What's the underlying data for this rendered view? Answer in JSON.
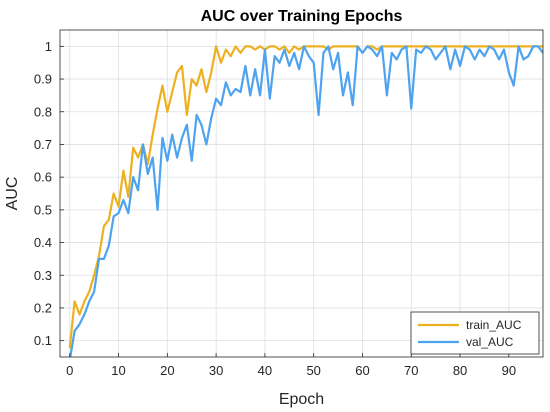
{
  "chart_data": {
    "type": "line",
    "title": "AUC over Training Epochs",
    "xlabel": "Epoch",
    "ylabel": "AUC",
    "xlim": [
      -2,
      97
    ],
    "ylim": [
      0.05,
      1.05
    ],
    "xticks": [
      0,
      10,
      20,
      30,
      40,
      50,
      60,
      70,
      80,
      90
    ],
    "yticks": [
      0.1,
      0.2,
      0.3,
      0.4,
      0.5,
      0.6,
      0.7,
      0.8,
      0.9,
      1
    ],
    "grid": true,
    "legend_position": "bottom-right",
    "series": [
      {
        "name": "train_AUC",
        "color": "#EDB120",
        "values": [
          0.08,
          0.22,
          0.18,
          0.22,
          0.25,
          0.3,
          0.36,
          0.45,
          0.47,
          0.55,
          0.51,
          0.62,
          0.54,
          0.69,
          0.66,
          0.7,
          0.64,
          0.73,
          0.81,
          0.88,
          0.8,
          0.86,
          0.92,
          0.94,
          0.79,
          0.9,
          0.88,
          0.93,
          0.86,
          0.92,
          1.0,
          0.95,
          0.99,
          0.97,
          1.0,
          0.98,
          1.0,
          1.0,
          0.99,
          1.0,
          0.99,
          1.0,
          1.0,
          0.99,
          1.0,
          0.98,
          1.0,
          0.99,
          1.0,
          1.0,
          1.0,
          1.0,
          1.0,
          0.99,
          1.0,
          1.0,
          1.0,
          1.0,
          1.0,
          1.0,
          0.98,
          1.0,
          1.0,
          0.99,
          1.0,
          1.0,
          1.0,
          1.0,
          1.0,
          1.0,
          1.0,
          1.0,
          1.0,
          1.0,
          1.0,
          1.0,
          1.0,
          1.0,
          1.0,
          1.0,
          1.0,
          1.0,
          1.0,
          1.0,
          1.0,
          1.0,
          1.0,
          1.0,
          1.0,
          1.0,
          1.0,
          1.0,
          1.0,
          1.0,
          1.0,
          1.0,
          1.0,
          1.0
        ]
      },
      {
        "name": "val_AUC",
        "color": "#4DA3F0",
        "values": [
          0.04,
          0.13,
          0.15,
          0.18,
          0.22,
          0.25,
          0.35,
          0.35,
          0.39,
          0.48,
          0.49,
          0.53,
          0.49,
          0.6,
          0.56,
          0.7,
          0.61,
          0.66,
          0.5,
          0.72,
          0.65,
          0.73,
          0.66,
          0.72,
          0.76,
          0.65,
          0.79,
          0.76,
          0.7,
          0.78,
          0.84,
          0.82,
          0.89,
          0.85,
          0.87,
          0.86,
          0.94,
          0.85,
          0.93,
          0.85,
          0.99,
          0.84,
          0.97,
          0.95,
          0.99,
          0.94,
          0.98,
          0.93,
          1.0,
          0.97,
          0.95,
          0.79,
          0.98,
          1.0,
          0.93,
          0.98,
          0.85,
          0.92,
          0.82,
          1.0,
          0.98,
          1.0,
          0.99,
          0.97,
          1.0,
          0.85,
          0.98,
          0.96,
          0.99,
          1.0,
          0.81,
          0.99,
          0.98,
          1.0,
          0.99,
          0.96,
          0.98,
          1.0,
          0.93,
          0.99,
          0.94,
          1.0,
          0.99,
          0.96,
          0.99,
          0.97,
          1.0,
          0.99,
          0.96,
          0.99,
          0.92,
          0.88,
          1.0,
          0.96,
          0.97,
          1.0,
          1.0,
          0.98
        ]
      }
    ]
  }
}
